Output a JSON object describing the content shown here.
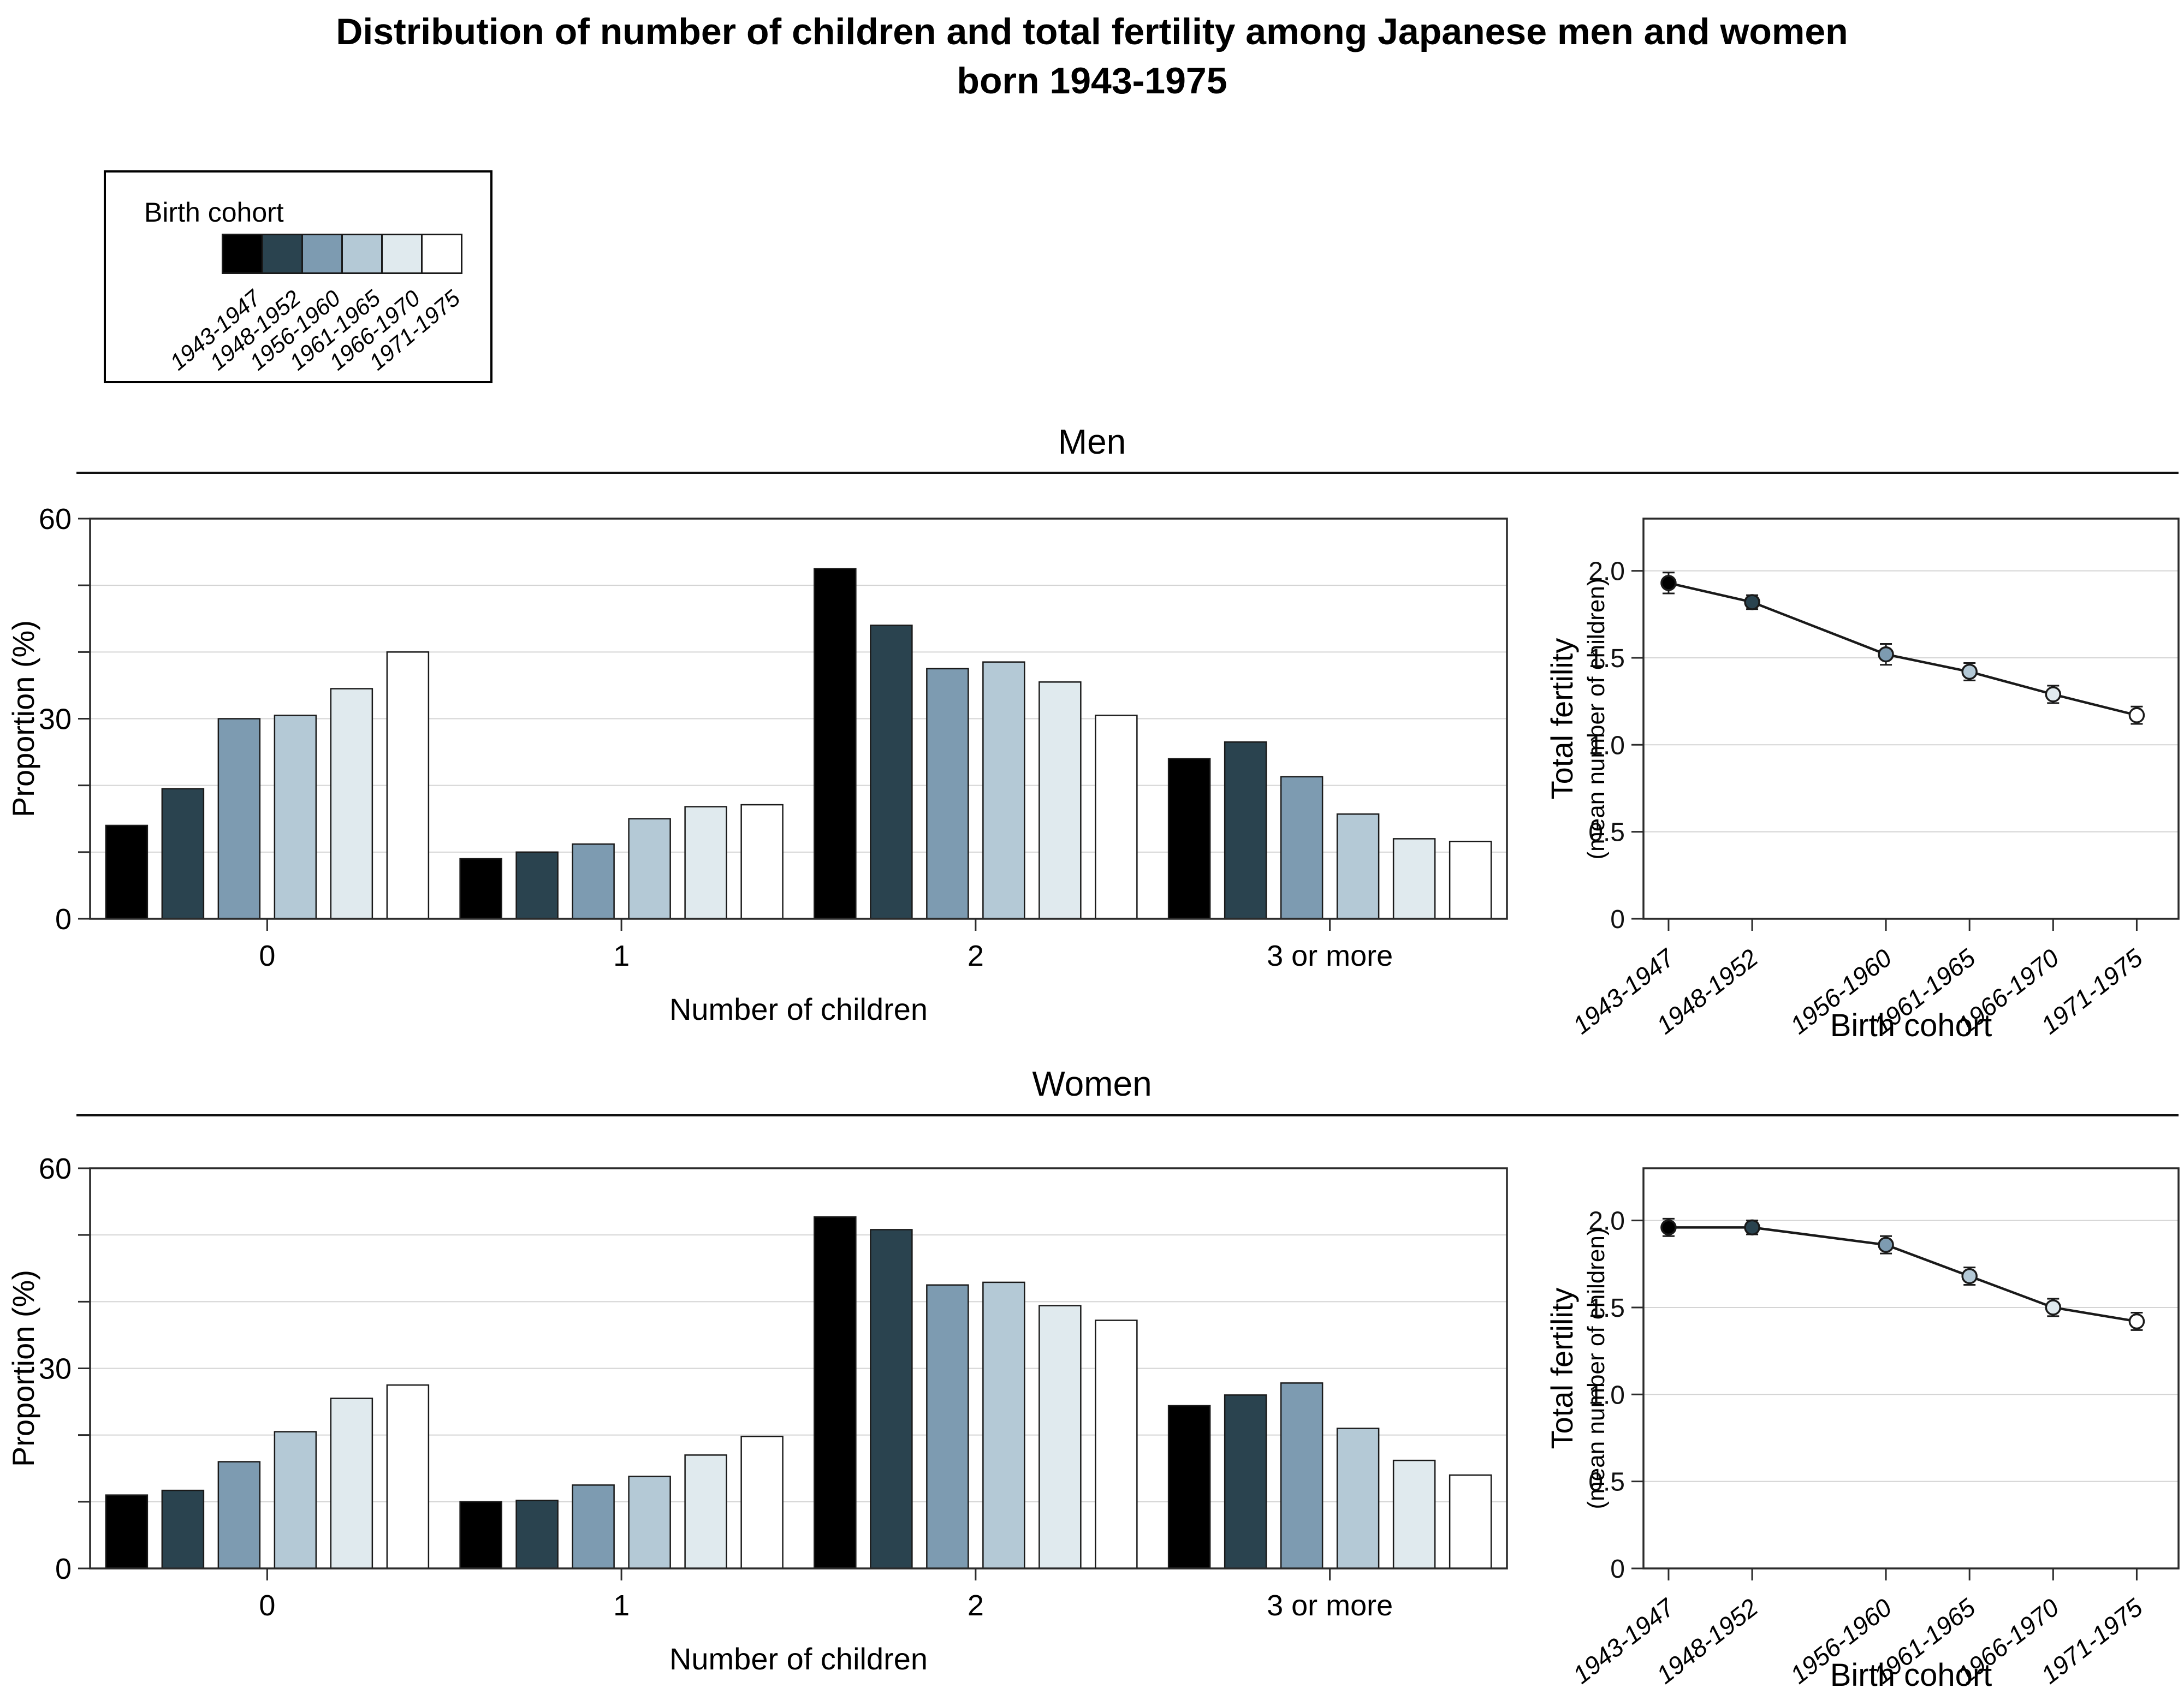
{
  "figure": {
    "title_line1": "Distribution of number of children and total fertility among Japanese men and women",
    "title_line2": "born 1943-1975",
    "section_men": "Men",
    "section_women": "Women"
  },
  "legend": {
    "title": "Birth cohort",
    "labels": [
      "1943-1947",
      "1948-1952",
      "1956-1960",
      "1961-1965",
      "1966-1970",
      "1971-1975"
    ],
    "colors": [
      "#000000",
      "#2a434f",
      "#7d9bb1",
      "#b4c9d6",
      "#e0eaee",
      "#ffffff"
    ]
  },
  "style": {
    "panel_border_color": "#2b2b2b",
    "gridline_color": "#d4d4d4",
    "bar_outline_color": "#1a1a1a",
    "line_color": "#1a1a1a",
    "tick_color": "#2b2b2b"
  },
  "chart_data": [
    {
      "id": "men-bar",
      "type": "bar",
      "panel": "Men",
      "categories": [
        "0",
        "1",
        "2",
        "3 or more"
      ],
      "series": [
        {
          "name": "1943-1947",
          "values": [
            14.0,
            9.0,
            52.5,
            24.0
          ]
        },
        {
          "name": "1948-1952",
          "values": [
            19.5,
            10.0,
            44.0,
            26.5
          ]
        },
        {
          "name": "1956-1960",
          "values": [
            30.0,
            11.2,
            37.5,
            21.3
          ]
        },
        {
          "name": "1961-1965",
          "values": [
            30.5,
            15.0,
            38.5,
            15.7
          ]
        },
        {
          "name": "1966-1970",
          "values": [
            34.5,
            16.8,
            35.5,
            12.0
          ]
        },
        {
          "name": "1971-1975",
          "values": [
            40.0,
            17.1,
            30.5,
            11.6
          ]
        }
      ],
      "xlabel": "Number of children",
      "ylabel": "Proportion (%)",
      "ylim": [
        0,
        60
      ],
      "yticks": [
        0,
        10,
        20,
        30,
        40,
        50,
        60
      ],
      "ytick_labeled": [
        0,
        30,
        60
      ],
      "grid": "horizontal",
      "legend_position": "shared-top-left"
    },
    {
      "id": "men-line",
      "type": "line",
      "panel": "Men",
      "x_labels": [
        "1943-1947",
        "1948-1952",
        "1956-1960",
        "1961-1965",
        "1966-1970",
        "1971-1975"
      ],
      "x_years": [
        1945,
        1950,
        1958,
        1963,
        1968,
        1973
      ],
      "values": [
        1.93,
        1.82,
        1.52,
        1.42,
        1.29,
        1.17
      ],
      "ci_halfwidth": [
        0.06,
        0.04,
        0.06,
        0.05,
        0.05,
        0.05
      ],
      "xlabel": "Birth cohort",
      "ylabel_line1": "Total fertility",
      "ylabel_line2": "(mean number of children)",
      "ylim": [
        0,
        2.3
      ],
      "yticks": [
        0,
        0.5,
        1.0,
        1.5,
        2.0
      ],
      "ytick_labels": [
        "0",
        "0.5",
        "1.0",
        "1.5",
        "2.0"
      ],
      "grid": "horizontal"
    },
    {
      "id": "women-bar",
      "type": "bar",
      "panel": "Women",
      "categories": [
        "0",
        "1",
        "2",
        "3 or more"
      ],
      "series": [
        {
          "name": "1943-1947",
          "values": [
            11.0,
            10.0,
            52.7,
            24.4
          ]
        },
        {
          "name": "1948-1952",
          "values": [
            11.7,
            10.2,
            50.8,
            26.0
          ]
        },
        {
          "name": "1956-1960",
          "values": [
            16.0,
            12.5,
            42.5,
            27.8
          ]
        },
        {
          "name": "1961-1965",
          "values": [
            20.5,
            13.8,
            42.9,
            21.0
          ]
        },
        {
          "name": "1966-1970",
          "values": [
            25.5,
            17.0,
            39.4,
            16.2
          ]
        },
        {
          "name": "1971-1975",
          "values": [
            27.5,
            19.8,
            37.2,
            14.0
          ]
        }
      ],
      "xlabel": "Number of children",
      "ylabel": "Proportion (%)",
      "ylim": [
        0,
        60
      ],
      "yticks": [
        0,
        10,
        20,
        30,
        40,
        50,
        60
      ],
      "ytick_labeled": [
        0,
        30,
        60
      ],
      "grid": "horizontal",
      "legend_position": "shared-top-left"
    },
    {
      "id": "women-line",
      "type": "line",
      "panel": "Women",
      "x_labels": [
        "1943-1947",
        "1948-1952",
        "1956-1960",
        "1961-1965",
        "1966-1970",
        "1971-1975"
      ],
      "x_years": [
        1945,
        1950,
        1958,
        1963,
        1968,
        1973
      ],
      "values": [
        1.96,
        1.96,
        1.86,
        1.68,
        1.5,
        1.42
      ],
      "ci_halfwidth": [
        0.05,
        0.04,
        0.05,
        0.05,
        0.05,
        0.05
      ],
      "xlabel": "Birth cohort",
      "ylabel_line1": "Total fertility",
      "ylabel_line2": "(mean number of children)",
      "ylim": [
        0,
        2.3
      ],
      "yticks": [
        0,
        0.5,
        1.0,
        1.5,
        2.0
      ],
      "ytick_labels": [
        "0",
        "0.5",
        "1.0",
        "1.5",
        "2.0"
      ],
      "grid": "horizontal"
    }
  ]
}
